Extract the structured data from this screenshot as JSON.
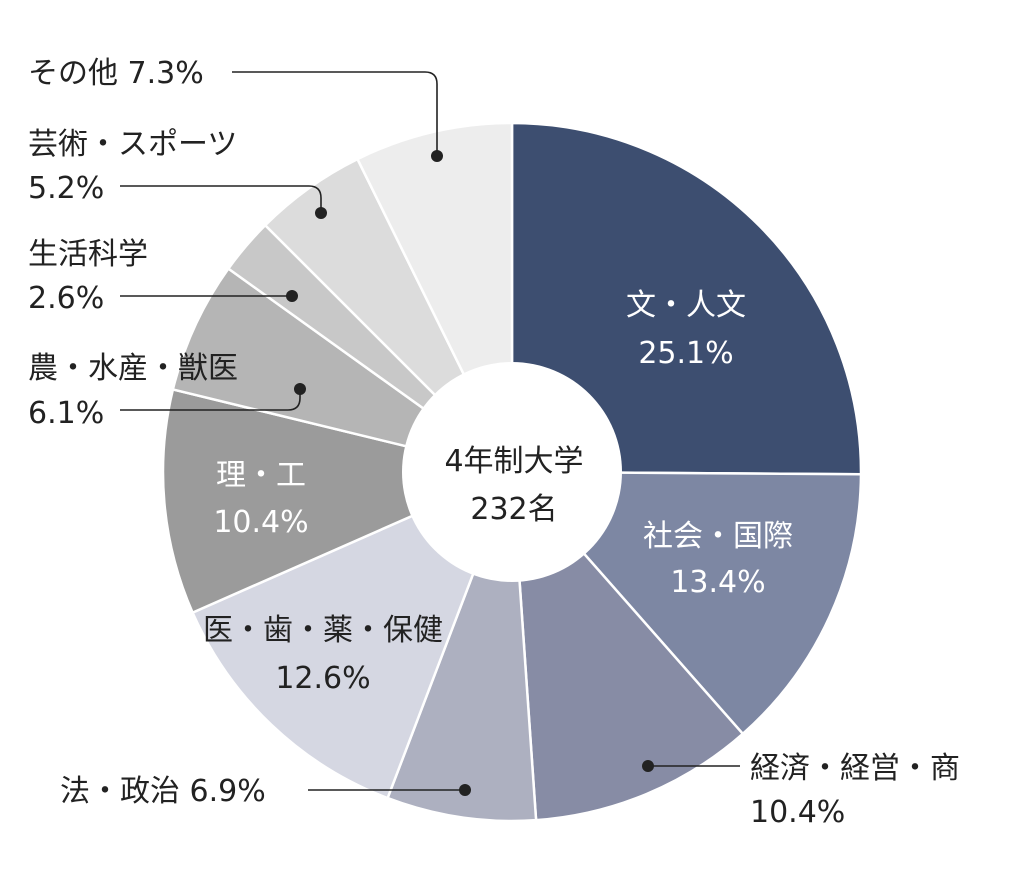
{
  "chart_data": {
    "type": "pie",
    "donut": true,
    "center_label": [
      "4年制大学",
      "232名"
    ],
    "unit": "%",
    "start_angle_deg": 0,
    "direction": "clockwise",
    "slices": [
      {
        "name": "文・人文",
        "value": 25.1,
        "value_text": "25.1%",
        "color": "#3d4e70",
        "label_color": "#ffffff",
        "label_lines": [
          "文・人文",
          "25.1%"
        ]
      },
      {
        "name": "社会・国際",
        "value": 13.4,
        "value_text": "13.4%",
        "color": "#7d87a3",
        "label_color": "#ffffff",
        "label_lines": [
          "社会・国際",
          "13.4%"
        ]
      },
      {
        "name": "経済・経営・商",
        "value": 10.4,
        "value_text": "10.4%",
        "color": "#878ca5",
        "label_color": "#222222",
        "label_lines": [
          "経済・経営・商",
          "10.4%"
        ]
      },
      {
        "name": "法・政治",
        "value": 6.9,
        "value_text": "6.9%",
        "color": "#adb0c0",
        "label_color": "#222222",
        "label_lines": [
          "法・政治 6.9%"
        ]
      },
      {
        "name": "医・歯・薬・保健",
        "value": 12.6,
        "value_text": "12.6%",
        "color": "#d5d7e2",
        "label_color": "#222222",
        "label_lines": [
          "医・歯・薬・保健",
          "12.6%"
        ]
      },
      {
        "name": "理・工",
        "value": 10.4,
        "value_text": "10.4%",
        "color": "#9b9b9b",
        "label_color": "#ffffff",
        "label_lines": [
          "理・工",
          "10.4%"
        ]
      },
      {
        "name": "農・水産・獣医",
        "value": 6.1,
        "value_text": "6.1%",
        "color": "#b5b5b5",
        "label_color": "#222222",
        "label_lines": [
          "農・水産・獣医",
          "6.1%"
        ]
      },
      {
        "name": "生活科学",
        "value": 2.6,
        "value_text": "2.6%",
        "color": "#c8c8c8",
        "label_color": "#222222",
        "label_lines": [
          "生活科学",
          "2.6%"
        ]
      },
      {
        "name": "芸術・スポーツ",
        "value": 5.2,
        "value_text": "5.2%",
        "color": "#dcdcdc",
        "label_color": "#222222",
        "label_lines": [
          "芸術・スポーツ",
          "5.2%"
        ]
      },
      {
        "name": "その他",
        "value": 7.3,
        "value_text": "7.3%",
        "color": "#ededed",
        "label_color": "#222222",
        "label_lines": [
          "その他 7.3%"
        ]
      }
    ]
  }
}
